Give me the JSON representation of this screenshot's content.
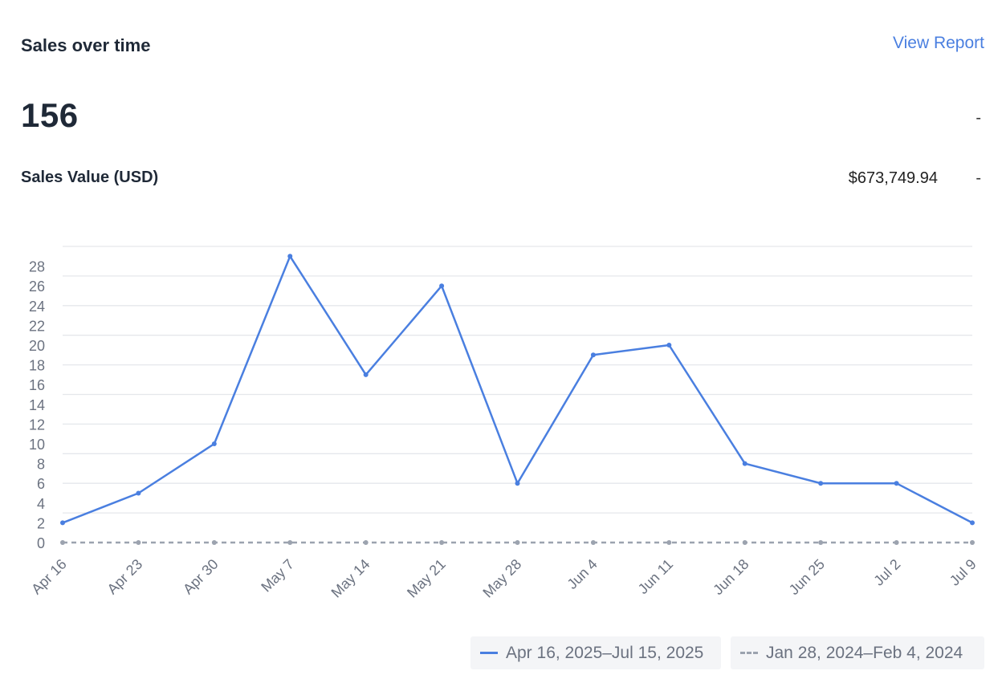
{
  "card": {
    "title": "Sales over time",
    "view_report_label": "View Report",
    "count_value": "156",
    "count_comparison": "-",
    "metric_label": "Sales Value (USD)",
    "metric_value": "$673,749.94",
    "metric_comparison": "-"
  },
  "colors": {
    "current": "#4a7fe0",
    "previous": "#9ca3af",
    "grid": "#e5e7eb",
    "tick": "#6b7280"
  },
  "legend": {
    "current_label": "Apr 16, 2025–Jul 15, 2025",
    "previous_label": "Jan 28, 2024–Feb 4, 2024"
  },
  "chart_data": {
    "type": "line",
    "categories": [
      "Apr 16",
      "Apr 23",
      "Apr 30",
      "May 7",
      "May 14",
      "May 21",
      "May 28",
      "Jun 4",
      "Jun 11",
      "Jun 18",
      "Jun 25",
      "Jul 2",
      "Jul 9"
    ],
    "series": [
      {
        "name": "Apr 16, 2025–Jul 15, 2025",
        "style": "solid",
        "values": [
          2,
          5,
          10,
          29,
          17,
          26,
          6,
          19,
          20,
          8,
          6,
          6,
          2
        ]
      },
      {
        "name": "Jan 28, 2024–Feb 4, 2024",
        "style": "dashed",
        "values": [
          0,
          0,
          0,
          0,
          0,
          0,
          0,
          0,
          0,
          0,
          0,
          0,
          0
        ]
      }
    ],
    "y_ticks": [
      0,
      2,
      4,
      6,
      8,
      10,
      12,
      14,
      16,
      18,
      20,
      22,
      24,
      26,
      28
    ],
    "ylim": [
      0,
      30
    ],
    "title": "",
    "xlabel": "",
    "ylabel": "",
    "grid": true,
    "legend_position": "bottom-right"
  }
}
